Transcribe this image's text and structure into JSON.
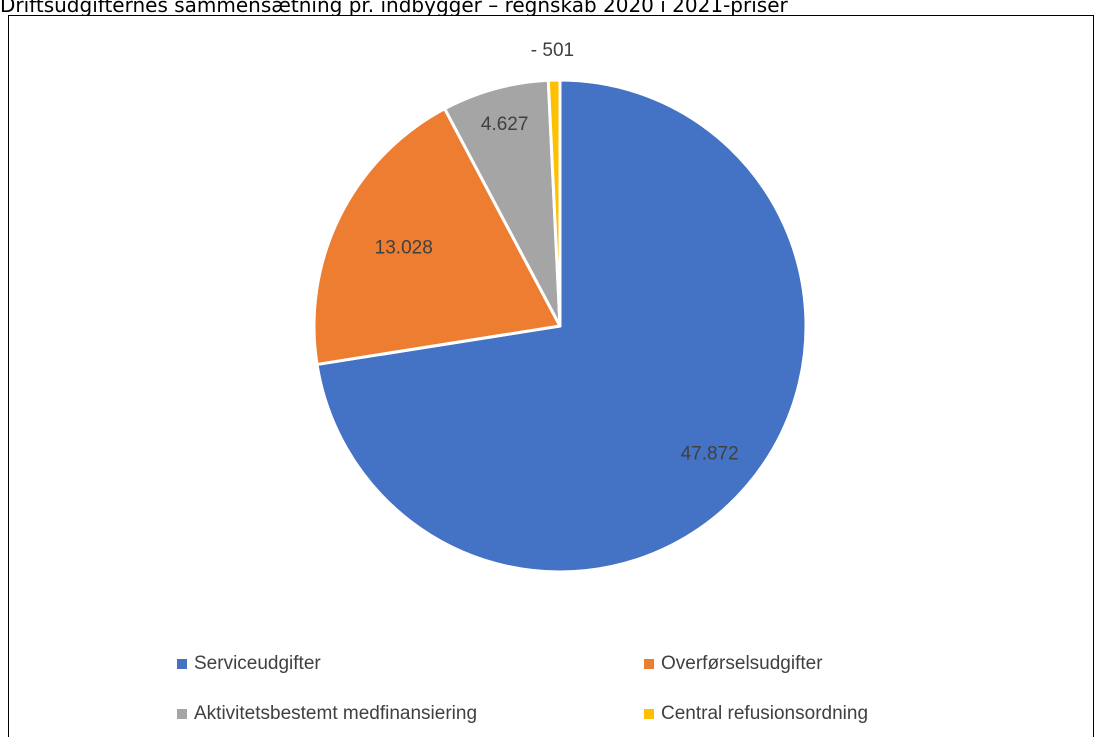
{
  "chart_data": {
    "type": "pie",
    "title": "Driftsudgifternes sammensætning pr. indbygger – regnskab 2020 i 2021-priser",
    "series": [
      {
        "values": [
          {
            "category": "Serviceudgifter",
            "value": 47872,
            "label": "47.872",
            "color": "#4472C4"
          },
          {
            "category": "Overførselsudgifter",
            "value": 13028,
            "label": "13.028",
            "color": "#ED7D31"
          },
          {
            "category": "Aktivitetsbestemt medfinansiering",
            "value": 4627,
            "label": "4.627",
            "color": "#A5A5A5"
          },
          {
            "category": "Central refusionsordning",
            "value": -501,
            "label": "- 501",
            "color": "#FFC000"
          }
        ]
      }
    ],
    "legend": {
      "position": "bottom",
      "items": [
        {
          "label": "Serviceudgifter",
          "color": "#4472C4"
        },
        {
          "label": "Overførselsudgifter",
          "color": "#ED7D31"
        },
        {
          "label": "Aktivitetsbestemt medfinansiering",
          "color": "#A5A5A5"
        },
        {
          "label": "Central refusionsordning",
          "color": "#FFC000"
        }
      ]
    }
  }
}
